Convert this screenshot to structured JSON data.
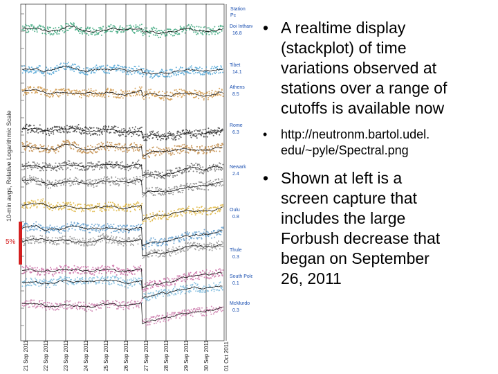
{
  "plot": {
    "y_axis_label": "10-min avgs, Relative Logarithmic Scale",
    "scale_label": "5%",
    "header": [
      "Station",
      "Pc"
    ],
    "stations": [
      {
        "name": "Doi Inthanon",
        "pc": "16.8"
      },
      {
        "name": "Tibet",
        "pc": "14.1"
      },
      {
        "name": "Athens",
        "pc": "8.5"
      },
      {
        "name": "Rome",
        "pc": "6.3"
      },
      {
        "name": "Newark",
        "pc": "2.4"
      },
      {
        "name": "Oulu",
        "pc": "0.8"
      },
      {
        "name": "Thule",
        "pc": "0.3"
      },
      {
        "name": "South Pole",
        "pc": "0.1"
      },
      {
        "name": "McMurdo",
        "pc": "0.3"
      }
    ],
    "dates": [
      "21 Sep 2011",
      "22 Sep 2011",
      "23 Sep 2011",
      "24 Sep 2011",
      "25 Sep 2011",
      "26 Sep 2011",
      "27 Sep 2011",
      "28 Sep 2011",
      "29 Sep 2011",
      "30 Sep 2011",
      "01 Oct 2011"
    ]
  },
  "bullets": [
    {
      "lines": [
        "A realtime display",
        "(stackplot) of time",
        "variations observed at",
        "stations over a range of",
        "cutoffs is available now"
      ]
    },
    {
      "lines": [
        "http://neutronm.bartol.udel.",
        "edu/~pyle/Spectral.png"
      ]
    },
    {
      "lines": [
        "Shown at left is a",
        "screen capture that",
        "includes the large",
        "Forbush decrease that",
        "began on September",
        "26, 2011"
      ]
    }
  ]
}
